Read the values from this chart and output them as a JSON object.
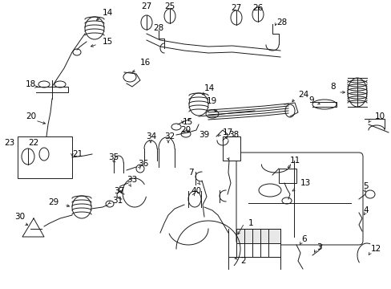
{
  "background_color": "#ffffff",
  "line_color": "#1a1a1a",
  "text_color": "#000000",
  "fig_width": 4.89,
  "fig_height": 3.6,
  "dpi": 100,
  "label_font_size": 7.5,
  "lw": 0.7
}
